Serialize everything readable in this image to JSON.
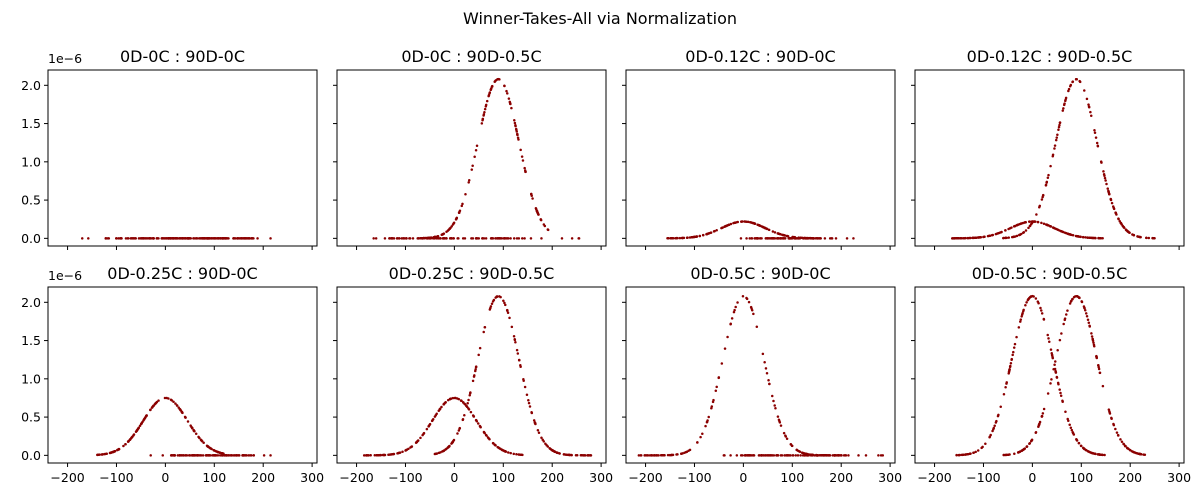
{
  "figure": {
    "suptitle": "Winner-Takes-All via Normalization"
  },
  "chart_data": {
    "type": "scatter",
    "marker_color": "#8b0000",
    "sharex": true,
    "sharey": true,
    "xlim": [
      -240,
      310
    ],
    "ylim": [
      -0.1,
      2.2
    ],
    "y_scale_label": "1e−6",
    "xticks": [
      -200,
      -100,
      0,
      100,
      200,
      300
    ],
    "xtick_labels": [
      "−200",
      "−100",
      "0",
      "100",
      "200",
      "300"
    ],
    "yticks": [
      0.0,
      0.5,
      1.0,
      1.5,
      2.0
    ],
    "ytick_labels": [
      "0.0",
      "0.5",
      "1.0",
      "1.5",
      "2.0"
    ],
    "grid": false,
    "panels": [
      {
        "title": "0D-0C : 90D-0C",
        "series": [
          {
            "center": 0,
            "peak": 0.0,
            "sigma": 45,
            "x_range": [
              -170,
              215
            ]
          },
          {
            "center": 90,
            "peak": 0.0,
            "sigma": 45,
            "x_range": [
              -100,
              180
            ]
          }
        ]
      },
      {
        "title": "0D-0C : 90D-0.5C",
        "series": [
          {
            "center": 0,
            "peak": 0.0,
            "sigma": 45,
            "x_range": [
              -165,
              255
            ]
          },
          {
            "center": 90,
            "peak": 2.08,
            "sigma": 42,
            "x_range": [
              -70,
              200
            ]
          }
        ]
      },
      {
        "title": "0D-0.12C : 90D-0C",
        "series": [
          {
            "center": 0,
            "peak": 0.22,
            "sigma": 45,
            "x_range": [
              -160,
              150
            ]
          },
          {
            "center": 90,
            "peak": 0.0,
            "sigma": 45,
            "x_range": [
              -5,
              225
            ]
          }
        ]
      },
      {
        "title": "0D-0.12C : 90D-0.5C",
        "series": [
          {
            "center": 0,
            "peak": 0.22,
            "sigma": 45,
            "x_range": [
              -165,
              145
            ]
          },
          {
            "center": 90,
            "peak": 2.08,
            "sigma": 42,
            "x_range": [
              -60,
              250
            ]
          }
        ]
      },
      {
        "title": "0D-0.25C : 90D-0C",
        "series": [
          {
            "center": 0,
            "peak": 0.75,
            "sigma": 45,
            "x_range": [
              -140,
              120
            ]
          },
          {
            "center": 90,
            "peak": 0.0,
            "sigma": 45,
            "x_range": [
              -30,
              215
            ]
          }
        ]
      },
      {
        "title": "0D-0.25C : 90D-0.5C",
        "series": [
          {
            "center": 0,
            "peak": 0.75,
            "sigma": 45,
            "x_range": [
              -185,
              140
            ]
          },
          {
            "center": 90,
            "peak": 2.08,
            "sigma": 42,
            "x_range": [
              -40,
              280
            ]
          }
        ]
      },
      {
        "title": "0D-0.5C : 90D-0C",
        "series": [
          {
            "center": 0,
            "peak": 2.08,
            "sigma": 42,
            "x_range": [
              -215,
              215
            ]
          },
          {
            "center": 90,
            "peak": 0.0,
            "sigma": 45,
            "x_range": [
              -40,
              285
            ]
          }
        ]
      },
      {
        "title": "0D-0.5C : 90D-0.5C",
        "series": [
          {
            "center": 0,
            "peak": 2.08,
            "sigma": 42,
            "x_range": [
              -160,
              150
            ]
          },
          {
            "center": 90,
            "peak": 2.08,
            "sigma": 42,
            "x_range": [
              -60,
              230
            ]
          }
        ]
      }
    ]
  }
}
